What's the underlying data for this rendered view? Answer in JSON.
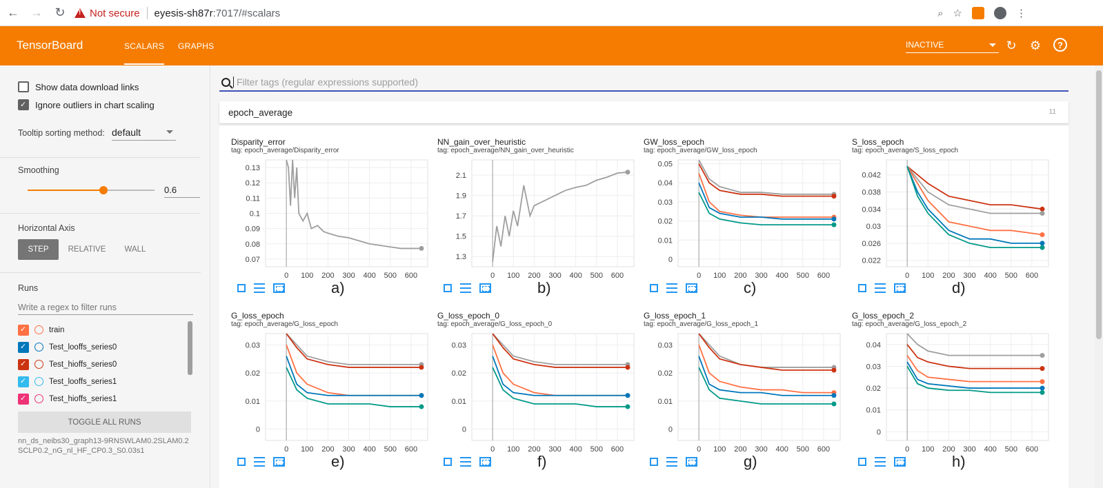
{
  "browser": {
    "security_label": "Not secure",
    "host": "eyesis-sh87r",
    "path": ":7017/#scalars"
  },
  "toolbar": {
    "brand": "TensorBoard",
    "tabs": [
      "SCALARS",
      "GRAPHS"
    ],
    "active_tab": "SCALARS",
    "run_selector": "INACTIVE",
    "accent_color": "#f57c00"
  },
  "sidebar": {
    "show_download_links": "Show data download links",
    "ignore_outliers": "Ignore outliers in chart scaling",
    "tooltip_label": "Tooltip sorting method:",
    "tooltip_value": "default",
    "smoothing_label": "Smoothing",
    "smoothing_value": "0.6",
    "smoothing_fraction": 0.6,
    "horizontal_axis_label": "Horizontal Axis",
    "axis_options": [
      "STEP",
      "RELATIVE",
      "WALL"
    ],
    "axis_selected": "STEP",
    "runs_label": "Runs",
    "runs_filter_placeholder": "Write a regex to filter runs",
    "runs": [
      {
        "name": "train",
        "color": "#ff7043"
      },
      {
        "name": "Test_looffs_series0",
        "color": "#0077bb"
      },
      {
        "name": "Test_hioffs_series0",
        "color": "#cc3311"
      },
      {
        "name": "Test_looffs_series1",
        "color": "#33bbee"
      },
      {
        "name": "Test_hioffs_series1",
        "color": "#ee3377"
      },
      {
        "name": "",
        "color": "#009988"
      }
    ],
    "toggle_all": "TOGGLE ALL RUNS",
    "logdir": "nn_ds_neibs30_graph13-9RNSWLAM0.2SLAM0.2SCLP0.2_nG_nl_HF_CP0.3_S0.03s1"
  },
  "main": {
    "filter_placeholder": "Filter tags (regular expressions supported)",
    "category": "epoch_average",
    "category_count": "11"
  },
  "chart_data": [
    {
      "type": "line",
      "title": "Disparity_error",
      "tag": "tag: epoch_average/Disparity_error",
      "caption": "a)",
      "yticks": [
        "0.13",
        "0.12",
        "0.11",
        "0.1",
        "0.09",
        "0.08",
        "0.07"
      ],
      "ylim": [
        0.065,
        0.135
      ],
      "xlim": [
        -100,
        680
      ],
      "xticks": [
        "0",
        "100",
        "200",
        "300",
        "400",
        "500",
        "600"
      ],
      "series": [
        {
          "color": "#9e9e9e",
          "x": [
            0,
            10,
            20,
            30,
            40,
            50,
            60,
            80,
            100,
            120,
            150,
            180,
            200,
            250,
            300,
            350,
            400,
            450,
            500,
            550,
            600,
            650
          ],
          "y": [
            0.135,
            0.13,
            0.105,
            0.135,
            0.11,
            0.13,
            0.1,
            0.095,
            0.1,
            0.09,
            0.092,
            0.088,
            0.087,
            0.085,
            0.084,
            0.082,
            0.08,
            0.079,
            0.078,
            0.077,
            0.077,
            0.077
          ]
        }
      ]
    },
    {
      "type": "line",
      "title": "NN_gain_over_heuristic",
      "tag": "tag: epoch_average/NN_gain_over_heuristic",
      "caption": "b)",
      "yticks": [
        "2.1",
        "1.9",
        "1.7",
        "1.5",
        "1.3"
      ],
      "ylim": [
        1.2,
        2.25
      ],
      "xlim": [
        -100,
        680
      ],
      "xticks": [
        "0",
        "100",
        "200",
        "300",
        "400",
        "500",
        "600"
      ],
      "series": [
        {
          "color": "#9e9e9e",
          "x": [
            0,
            20,
            40,
            60,
            80,
            100,
            120,
            150,
            180,
            200,
            250,
            300,
            350,
            400,
            450,
            500,
            550,
            600,
            650
          ],
          "y": [
            1.25,
            1.6,
            1.4,
            1.7,
            1.5,
            1.75,
            1.6,
            2.0,
            1.7,
            1.8,
            1.85,
            1.9,
            1.95,
            1.98,
            2.0,
            2.05,
            2.08,
            2.12,
            2.13
          ]
        }
      ]
    },
    {
      "type": "line",
      "title": "GW_loss_epoch",
      "tag": "tag: epoch_average/GW_loss_epoch",
      "caption": "c)",
      "yticks": [
        "0.05",
        "0.04",
        "0.03",
        "0.02",
        "0.01",
        "0"
      ],
      "ylim": [
        -0.004,
        0.052
      ],
      "xlim": [
        -100,
        680
      ],
      "xticks": [
        "0",
        "100",
        "200",
        "300",
        "400",
        "500",
        "600"
      ],
      "series": [
        {
          "color": "#9e9e9e",
          "x": [
            0,
            50,
            100,
            200,
            300,
            400,
            500,
            650
          ],
          "y": [
            0.052,
            0.042,
            0.038,
            0.035,
            0.035,
            0.034,
            0.034,
            0.034
          ]
        },
        {
          "color": "#cc3311",
          "x": [
            0,
            50,
            100,
            200,
            300,
            400,
            500,
            650
          ],
          "y": [
            0.05,
            0.04,
            0.036,
            0.034,
            0.034,
            0.033,
            0.033,
            0.033
          ]
        },
        {
          "color": "#ff7043",
          "x": [
            0,
            50,
            100,
            200,
            300,
            400,
            500,
            650
          ],
          "y": [
            0.045,
            0.03,
            0.025,
            0.023,
            0.022,
            0.022,
            0.022,
            0.022
          ]
        },
        {
          "color": "#0077bb",
          "x": [
            0,
            50,
            100,
            200,
            300,
            400,
            500,
            650
          ],
          "y": [
            0.04,
            0.027,
            0.024,
            0.022,
            0.022,
            0.021,
            0.021,
            0.021
          ]
        },
        {
          "color": "#009988",
          "x": [
            0,
            50,
            100,
            200,
            300,
            400,
            500,
            650
          ],
          "y": [
            0.035,
            0.024,
            0.021,
            0.019,
            0.018,
            0.018,
            0.018,
            0.018
          ]
        }
      ]
    },
    {
      "type": "line",
      "title": "S_loss_epoch",
      "tag": "tag: epoch_average/S_loss_epoch",
      "caption": "d)",
      "yticks": [
        "0.042",
        "0.038",
        "0.034",
        "0.03",
        "0.026",
        "0.022"
      ],
      "ylim": [
        0.0205,
        0.0455
      ],
      "xlim": [
        -100,
        680
      ],
      "xticks": [
        "0",
        "100",
        "200",
        "300",
        "400",
        "500",
        "600"
      ],
      "series": [
        {
          "color": "#cc3311",
          "x": [
            0,
            50,
            100,
            200,
            300,
            400,
            500,
            650
          ],
          "y": [
            0.044,
            0.042,
            0.04,
            0.037,
            0.036,
            0.035,
            0.035,
            0.034
          ]
        },
        {
          "color": "#9e9e9e",
          "x": [
            0,
            50,
            100,
            200,
            300,
            400,
            500,
            650
          ],
          "y": [
            0.044,
            0.041,
            0.038,
            0.035,
            0.034,
            0.033,
            0.033,
            0.033
          ]
        },
        {
          "color": "#ff7043",
          "x": [
            0,
            50,
            100,
            200,
            300,
            400,
            500,
            650
          ],
          "y": [
            0.044,
            0.04,
            0.036,
            0.031,
            0.03,
            0.029,
            0.029,
            0.028
          ]
        },
        {
          "color": "#0077bb",
          "x": [
            0,
            50,
            100,
            200,
            300,
            400,
            500,
            650
          ],
          "y": [
            0.044,
            0.038,
            0.034,
            0.029,
            0.027,
            0.027,
            0.026,
            0.026
          ]
        },
        {
          "color": "#009988",
          "x": [
            0,
            50,
            100,
            200,
            300,
            400,
            500,
            650
          ],
          "y": [
            0.044,
            0.037,
            0.033,
            0.028,
            0.026,
            0.025,
            0.025,
            0.025
          ]
        }
      ]
    },
    {
      "type": "line",
      "title": "G_loss_epoch",
      "tag": "tag: epoch_average/G_loss_epoch",
      "caption": "e)",
      "yticks": [
        "0.03",
        "0.02",
        "0.01",
        "0"
      ],
      "ylim": [
        -0.004,
        0.034
      ],
      "xlim": [
        -100,
        680
      ],
      "xticks": [
        "0",
        "100",
        "200",
        "300",
        "400",
        "500",
        "600"
      ],
      "series": [
        {
          "color": "#9e9e9e",
          "x": [
            0,
            50,
            100,
            200,
            300,
            400,
            500,
            650
          ],
          "y": [
            0.034,
            0.03,
            0.026,
            0.024,
            0.023,
            0.023,
            0.023,
            0.023
          ]
        },
        {
          "color": "#cc3311",
          "x": [
            0,
            50,
            100,
            200,
            300,
            400,
            500,
            650
          ],
          "y": [
            0.034,
            0.029,
            0.025,
            0.023,
            0.022,
            0.022,
            0.022,
            0.022
          ]
        },
        {
          "color": "#ff7043",
          "x": [
            0,
            50,
            100,
            200,
            300,
            400,
            500,
            650
          ],
          "y": [
            0.03,
            0.02,
            0.016,
            0.013,
            0.012,
            0.012,
            0.012,
            0.012
          ]
        },
        {
          "color": "#0077bb",
          "x": [
            0,
            50,
            100,
            200,
            300,
            400,
            500,
            650
          ],
          "y": [
            0.026,
            0.016,
            0.013,
            0.012,
            0.012,
            0.012,
            0.012,
            0.012
          ]
        },
        {
          "color": "#009988",
          "x": [
            0,
            50,
            100,
            200,
            300,
            400,
            500,
            650
          ],
          "y": [
            0.022,
            0.014,
            0.011,
            0.009,
            0.009,
            0.009,
            0.008,
            0.008
          ]
        }
      ]
    },
    {
      "type": "line",
      "title": "G_loss_epoch_0",
      "tag": "tag: epoch_average/G_loss_epoch_0",
      "caption": "f)",
      "yticks": [
        "0.03",
        "0.02",
        "0.01",
        "0"
      ],
      "ylim": [
        -0.004,
        0.034
      ],
      "xlim": [
        -100,
        680
      ],
      "xticks": [
        "0",
        "100",
        "200",
        "300",
        "400",
        "500",
        "600"
      ],
      "series": [
        {
          "color": "#9e9e9e",
          "x": [
            0,
            50,
            100,
            200,
            300,
            400,
            500,
            650
          ],
          "y": [
            0.034,
            0.03,
            0.026,
            0.024,
            0.023,
            0.023,
            0.023,
            0.023
          ]
        },
        {
          "color": "#cc3311",
          "x": [
            0,
            50,
            100,
            200,
            300,
            400,
            500,
            650
          ],
          "y": [
            0.034,
            0.029,
            0.025,
            0.023,
            0.022,
            0.022,
            0.022,
            0.022
          ]
        },
        {
          "color": "#ff7043",
          "x": [
            0,
            50,
            100,
            200,
            300,
            400,
            500,
            650
          ],
          "y": [
            0.03,
            0.02,
            0.016,
            0.013,
            0.012,
            0.012,
            0.012,
            0.012
          ]
        },
        {
          "color": "#0077bb",
          "x": [
            0,
            50,
            100,
            200,
            300,
            400,
            500,
            650
          ],
          "y": [
            0.026,
            0.016,
            0.013,
            0.012,
            0.012,
            0.012,
            0.012,
            0.012
          ]
        },
        {
          "color": "#009988",
          "x": [
            0,
            50,
            100,
            200,
            300,
            400,
            500,
            650
          ],
          "y": [
            0.022,
            0.014,
            0.011,
            0.009,
            0.009,
            0.009,
            0.008,
            0.008
          ]
        }
      ]
    },
    {
      "type": "line",
      "title": "G_loss_epoch_1",
      "tag": "tag: epoch_average/G_loss_epoch_1",
      "caption": "g)",
      "yticks": [
        "0.03",
        "0.02",
        "0.01",
        "0"
      ],
      "ylim": [
        -0.004,
        0.034
      ],
      "xlim": [
        -100,
        680
      ],
      "xticks": [
        "0",
        "100",
        "200",
        "300",
        "400",
        "500",
        "600"
      ],
      "series": [
        {
          "color": "#9e9e9e",
          "x": [
            0,
            50,
            100,
            200,
            300,
            400,
            500,
            650
          ],
          "y": [
            0.034,
            0.03,
            0.026,
            0.023,
            0.022,
            0.022,
            0.022,
            0.022
          ]
        },
        {
          "color": "#cc3311",
          "x": [
            0,
            50,
            100,
            200,
            300,
            400,
            500,
            650
          ],
          "y": [
            0.034,
            0.029,
            0.025,
            0.023,
            0.022,
            0.021,
            0.021,
            0.021
          ]
        },
        {
          "color": "#ff7043",
          "x": [
            0,
            50,
            100,
            200,
            300,
            400,
            500,
            650
          ],
          "y": [
            0.03,
            0.02,
            0.017,
            0.015,
            0.014,
            0.014,
            0.013,
            0.013
          ]
        },
        {
          "color": "#0077bb",
          "x": [
            0,
            50,
            100,
            200,
            300,
            400,
            500,
            650
          ],
          "y": [
            0.026,
            0.016,
            0.014,
            0.013,
            0.013,
            0.012,
            0.012,
            0.012
          ]
        },
        {
          "color": "#009988",
          "x": [
            0,
            50,
            100,
            200,
            300,
            400,
            500,
            650
          ],
          "y": [
            0.022,
            0.014,
            0.011,
            0.01,
            0.009,
            0.009,
            0.009,
            0.009
          ]
        }
      ]
    },
    {
      "type": "line",
      "title": "G_loss_epoch_2",
      "tag": "tag: epoch_average/G_loss_epoch_2",
      "caption": "h)",
      "yticks": [
        "0.04",
        "0.03",
        "0.02",
        "0.01",
        "0"
      ],
      "ylim": [
        -0.004,
        0.045
      ],
      "xlim": [
        -100,
        680
      ],
      "xticks": [
        "0",
        "100",
        "200",
        "300",
        "400",
        "500",
        "600"
      ],
      "series": [
        {
          "color": "#9e9e9e",
          "x": [
            0,
            50,
            100,
            200,
            300,
            400,
            500,
            650
          ],
          "y": [
            0.045,
            0.04,
            0.037,
            0.035,
            0.035,
            0.035,
            0.035,
            0.035
          ]
        },
        {
          "color": "#cc3311",
          "x": [
            0,
            50,
            100,
            200,
            300,
            400,
            500,
            650
          ],
          "y": [
            0.04,
            0.034,
            0.032,
            0.03,
            0.029,
            0.029,
            0.029,
            0.029
          ]
        },
        {
          "color": "#ff7043",
          "x": [
            0,
            50,
            100,
            200,
            300,
            400,
            500,
            650
          ],
          "y": [
            0.035,
            0.028,
            0.025,
            0.024,
            0.023,
            0.023,
            0.023,
            0.023
          ]
        },
        {
          "color": "#0077bb",
          "x": [
            0,
            50,
            100,
            200,
            300,
            400,
            500,
            650
          ],
          "y": [
            0.032,
            0.024,
            0.022,
            0.021,
            0.02,
            0.02,
            0.02,
            0.02
          ]
        },
        {
          "color": "#009988",
          "x": [
            0,
            50,
            100,
            200,
            300,
            400,
            500,
            650
          ],
          "y": [
            0.03,
            0.022,
            0.02,
            0.019,
            0.019,
            0.018,
            0.018,
            0.018
          ]
        }
      ]
    }
  ]
}
